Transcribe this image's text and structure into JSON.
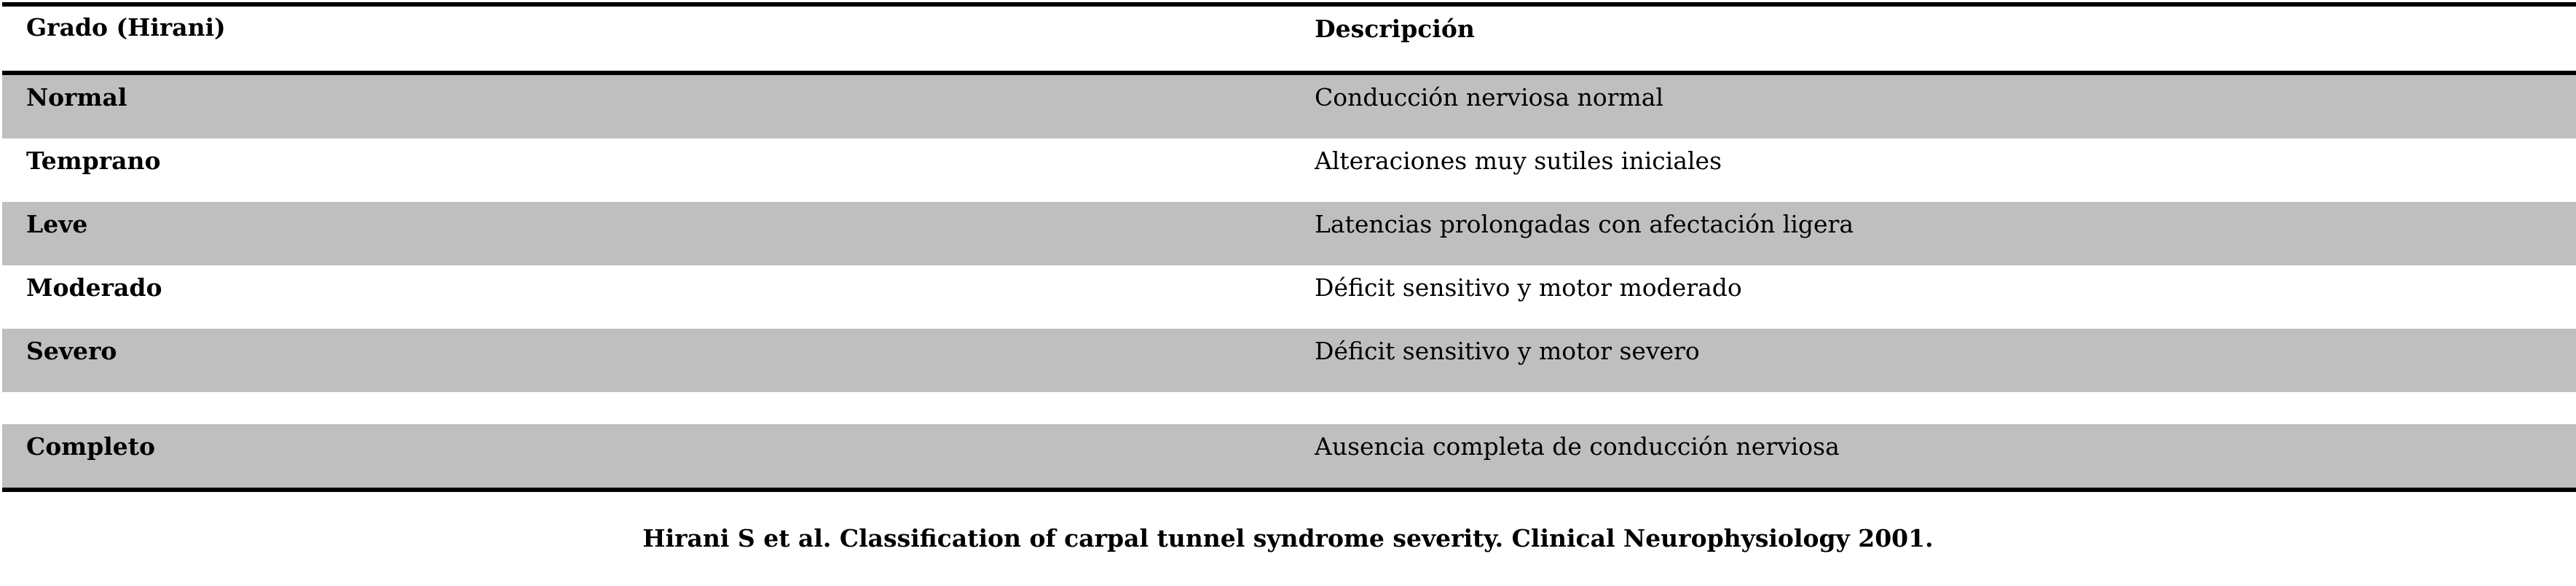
{
  "table": {
    "header": {
      "grade": "Grado (Hirani)",
      "description": "Descripción"
    },
    "rows": [
      {
        "grade": "Normal",
        "description": "Conducción nerviosa normal"
      },
      {
        "grade": "Temprano",
        "description": "Alteraciones muy sutiles iniciales"
      },
      {
        "grade": "Leve",
        "description": "Latencias prolongadas con afectación ligera"
      },
      {
        "grade": "Moderado",
        "description": "Déficit sensitivo y motor moderado"
      },
      {
        "grade": "Severo",
        "description": "Déficit sensitivo y motor severo"
      },
      {
        "grade": "Completo",
        "description": "Ausencia completa de conducción nerviosa"
      }
    ],
    "shade_color": "#bfbfbf"
  },
  "caption": "Hirani S et al. Classification of carpal tunnel syndrome severity. Clinical Neurophysiology 2001."
}
